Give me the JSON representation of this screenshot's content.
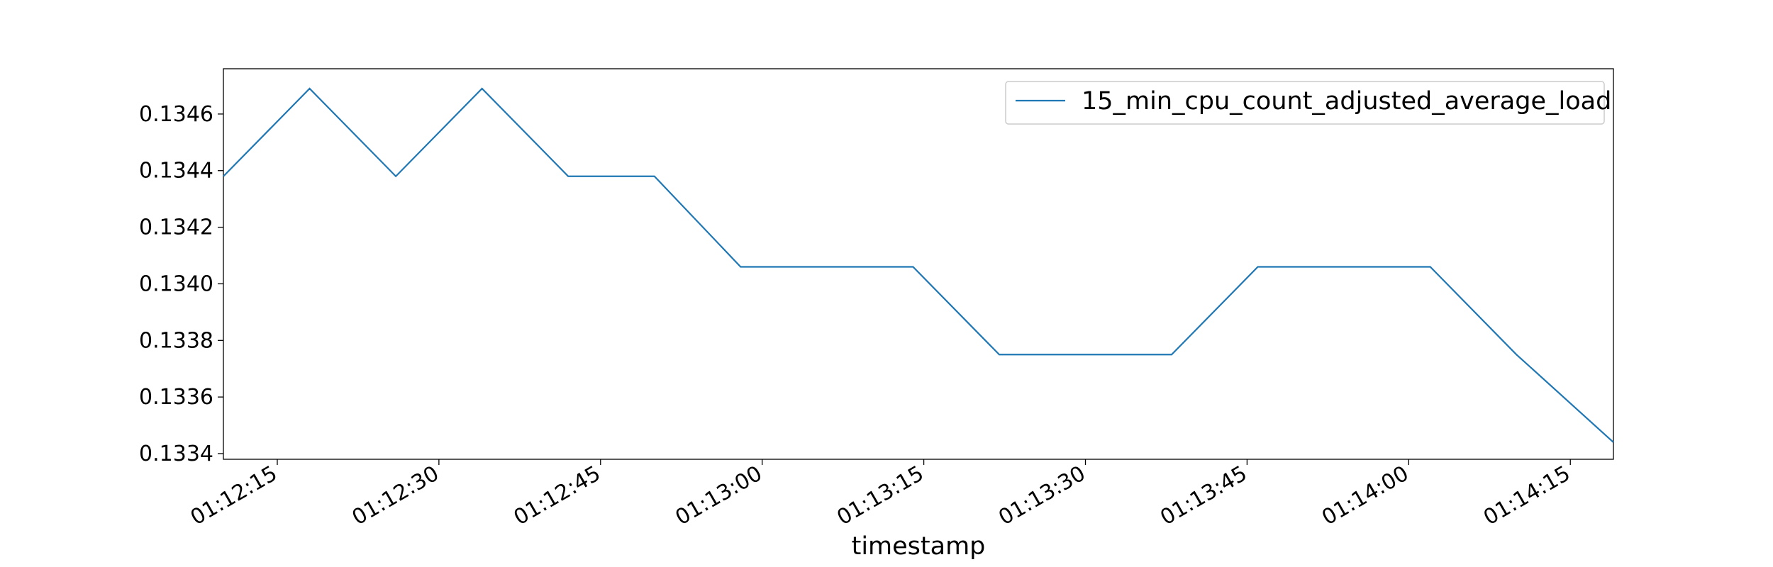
{
  "chart_data": {
    "type": "line",
    "title": "",
    "xlabel": "timestamp",
    "ylabel": "",
    "grid": false,
    "legend_position": "top-right",
    "x_tick_labels": [
      "01:12:15",
      "01:12:30",
      "01:12:45",
      "01:13:00",
      "01:13:15",
      "01:13:30",
      "01:13:45",
      "01:14:00",
      "01:14:15"
    ],
    "y_tick_labels": [
      "0.1334",
      "0.1336",
      "0.1338",
      "0.1340",
      "0.1342",
      "0.1344",
      "0.1346"
    ],
    "xlim": [
      "01:12:10",
      "01:14:19"
    ],
    "ylim": [
      0.13338,
      0.13476
    ],
    "series": [
      {
        "name": "15_min_cpu_count_adjusted_average_load",
        "color": "#1f77b4",
        "x": [
          "01:12:10",
          "01:12:18",
          "01:12:26",
          "01:12:34",
          "01:12:42",
          "01:12:50",
          "01:12:58",
          "01:13:06",
          "01:13:14",
          "01:13:22",
          "01:13:30",
          "01:13:38",
          "01:13:46",
          "01:13:54",
          "01:14:02",
          "01:14:10",
          "01:14:19"
        ],
        "values": [
          0.13438,
          0.13469,
          0.13438,
          0.13469,
          0.13438,
          0.13438,
          0.13406,
          0.13406,
          0.13406,
          0.13375,
          0.13375,
          0.13375,
          0.13406,
          0.13406,
          0.13406,
          0.13375,
          0.13344
        ]
      }
    ]
  }
}
